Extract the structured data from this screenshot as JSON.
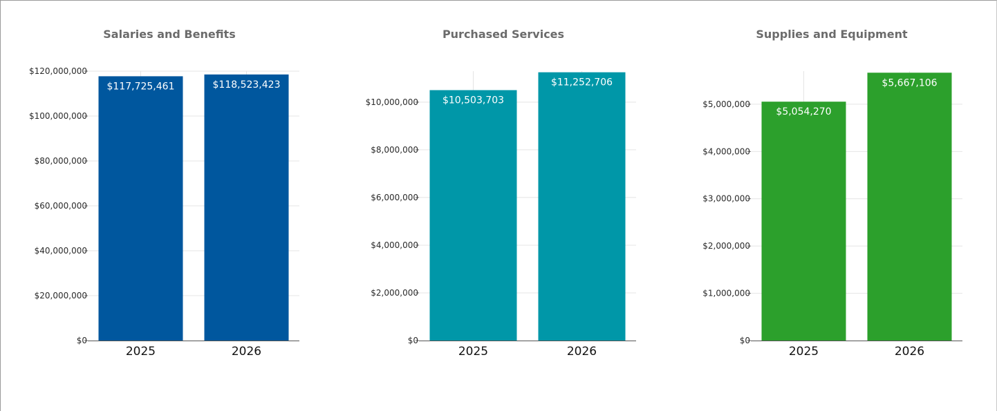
{
  "chart_data": [
    {
      "type": "bar",
      "title": "Salaries and Benefits",
      "categories": [
        "2025",
        "2026"
      ],
      "values": [
        117725461,
        118523423
      ],
      "data_labels": [
        "$117,725,461",
        "$118,523,423"
      ],
      "color": "#00579e",
      "ylim": [
        0,
        120000000
      ],
      "yticks": [
        0,
        20000000,
        40000000,
        60000000,
        80000000,
        100000000,
        120000000
      ],
      "ytick_labels": [
        "$0",
        "$20,000,000",
        "$40,000,000",
        "$60,000,000",
        "$80,000,000",
        "$100,000,000",
        "$120,000,000"
      ],
      "grid": true
    },
    {
      "type": "bar",
      "title": "Purchased Services",
      "categories": [
        "2025",
        "2026"
      ],
      "values": [
        10503703,
        11252706
      ],
      "data_labels": [
        "$10,503,703",
        "$11,252,706"
      ],
      "color": "#0097a8",
      "ylim": [
        0,
        11300000
      ],
      "yticks": [
        0,
        2000000,
        4000000,
        6000000,
        8000000,
        10000000
      ],
      "ytick_labels": [
        "$0",
        "$2,000,000",
        "$4,000,000",
        "$6,000,000",
        "$8,000,000",
        "$10,000,000"
      ],
      "grid": true
    },
    {
      "type": "bar",
      "title": "Supplies and Equipment",
      "categories": [
        "2025",
        "2026"
      ],
      "values": [
        5054270,
        5667106
      ],
      "data_labels": [
        "$5,054,270",
        "$5,667,106"
      ],
      "color": "#2ca02c",
      "ylim": [
        0,
        5700000
      ],
      "yticks": [
        0,
        1000000,
        2000000,
        3000000,
        4000000,
        5000000
      ],
      "ytick_labels": [
        "$0",
        "$1,000,000",
        "$2,000,000",
        "$3,000,000",
        "$4,000,000",
        "$5,000,000"
      ],
      "grid": true
    }
  ]
}
